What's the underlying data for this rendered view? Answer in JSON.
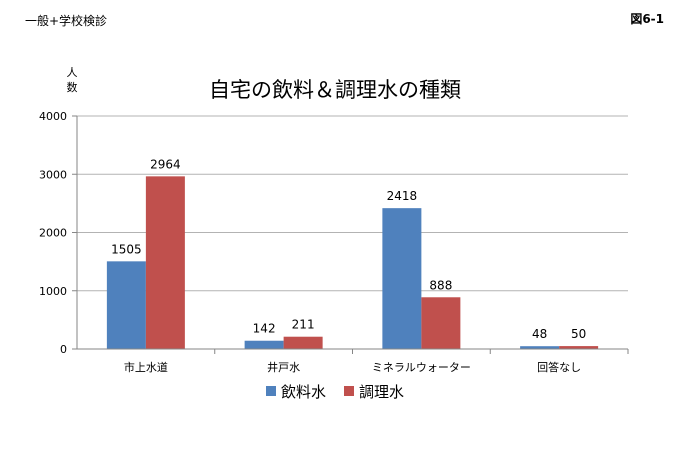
{
  "header": {
    "subtitle_left": "一般+学校検診",
    "figure_label": "図6-1"
  },
  "colors": {
    "series_1": "#4f81bd",
    "series_2": "#c0504d",
    "axis": "#868686",
    "grid": "#b3b3b3",
    "text": "#000000"
  },
  "chart_data": {
    "type": "bar",
    "title": "自宅の飲料＆調理水の種類",
    "ylabel": "人数",
    "ylabel_chars": [
      "人",
      "数"
    ],
    "xlabel": "",
    "ylim": [
      0,
      4000
    ],
    "yticks": [
      0,
      1000,
      2000,
      3000,
      4000
    ],
    "grid": true,
    "legend_position": "bottom",
    "categories": [
      "市上水道",
      "井戸水",
      "ミネラルウォーター",
      "回答なし"
    ],
    "series": [
      {
        "name": "飲料水",
        "values": [
          1505,
          142,
          2418,
          48
        ]
      },
      {
        "name": "調理水",
        "values": [
          2964,
          211,
          888,
          50
        ]
      }
    ]
  }
}
